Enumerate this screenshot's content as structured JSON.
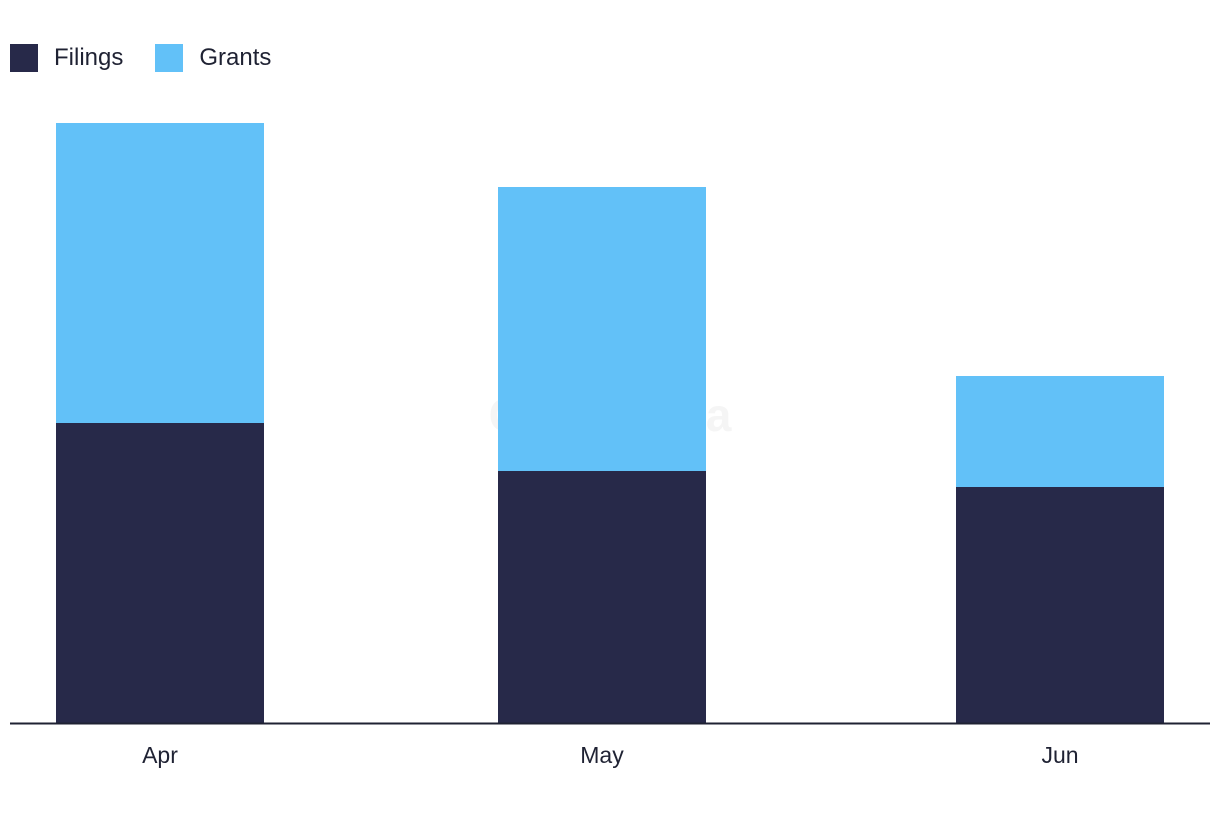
{
  "chart_data": {
    "type": "bar",
    "stacked": true,
    "categories": [
      "Apr",
      "May",
      "Jun"
    ],
    "series": [
      {
        "name": "Filings",
        "color": "#272949",
        "values": [
          300,
          252,
          236
        ]
      },
      {
        "name": "Grants",
        "color": "#62c1f8",
        "values": [
          300,
          284,
          111
        ]
      }
    ],
    "ylim": [
      0,
      630
    ],
    "grid": false,
    "legend_position": "top-left",
    "watermark": "GlobalData"
  }
}
